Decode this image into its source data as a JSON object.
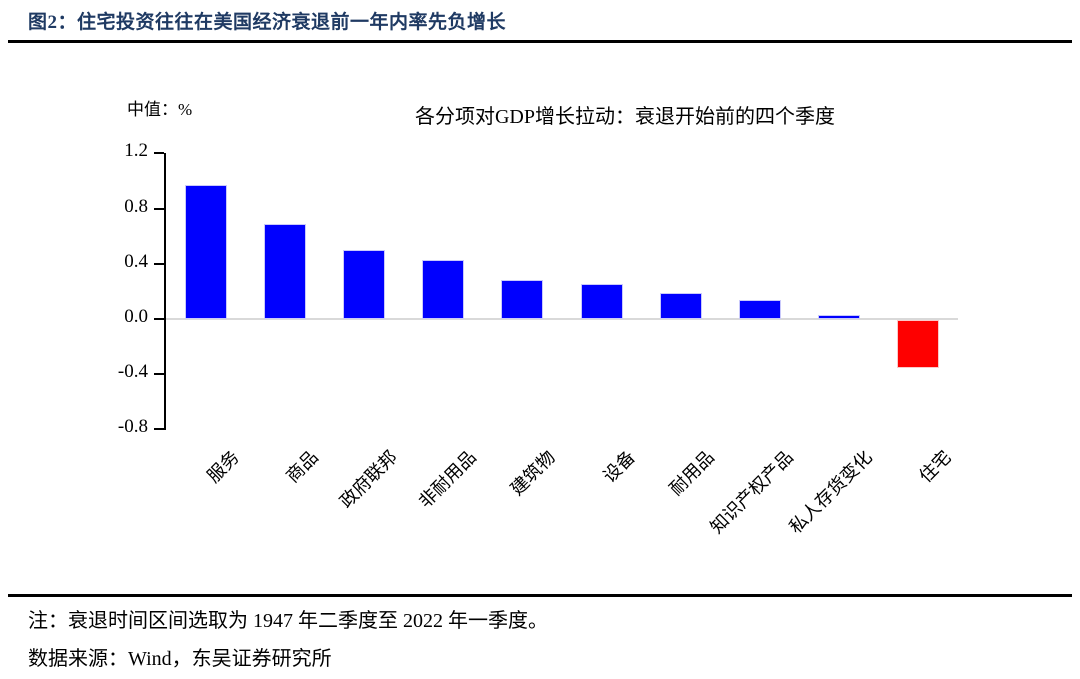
{
  "header": {
    "title": "图2：住宅投资往往在美国经济衰退前一年内率先负增长"
  },
  "chart": {
    "unit_label": "中值：%",
    "title": "各分项对GDP增长拉动：衰退开始前的四个季度"
  },
  "chart_data": {
    "type": "bar",
    "title": "各分项对GDP增长拉动：衰退开始前的四个季度",
    "ylabel": "中值：%",
    "xlabel": "",
    "categories": [
      "服务",
      "商品",
      "政府联邦",
      "非耐用品",
      "建筑物",
      "设备",
      "耐用品",
      "知识产权产品",
      "私人存货变化",
      "住宅"
    ],
    "values": [
      0.97,
      0.69,
      0.5,
      0.43,
      0.28,
      0.25,
      0.19,
      0.14,
      0.03,
      -0.35
    ],
    "bar_colors": [
      "#0000fe",
      "#0000fe",
      "#0000fe",
      "#0000fe",
      "#0000fe",
      "#0000fe",
      "#0000fe",
      "#0000fe",
      "#0000fe",
      "#fe0000"
    ],
    "ylim": [
      -0.8,
      1.2
    ],
    "yticks": [
      1.2,
      0.8,
      0.4,
      0.0,
      -0.4,
      -0.8
    ],
    "grid": false,
    "legend": "none",
    "x_label_rotation_deg": 45
  },
  "footer": {
    "note": "注：衰退时间区间选取为 1947 年二季度至 2022 年一季度。",
    "source": "数据来源：Wind，东吴证券研究所"
  },
  "colors": {
    "title_text": "#1f3a63",
    "bar_positive": "#0000fe",
    "bar_highlight_negative": "#fe0000",
    "zero_line": "#d9d9d9",
    "axis": "#000000"
  }
}
